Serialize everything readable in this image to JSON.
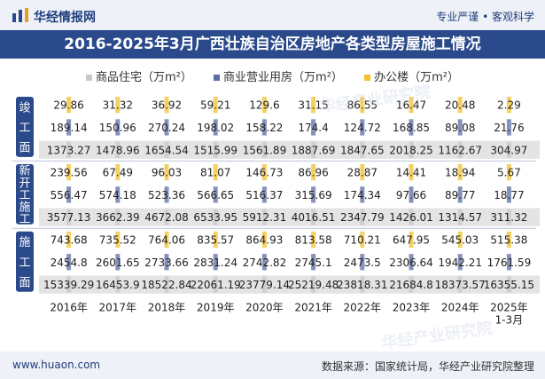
{
  "header": {
    "brand": "华经情报网",
    "slogan": "专业严谨 • 客观科学"
  },
  "chart_data": {
    "type": "table",
    "title": "2016-2025年3月广西壮族自治区房地产各类型房屋施工情况",
    "legend": [
      "商品住宅（万m²）",
      "商业营业用房（万m²）",
      "办公楼（万m²）"
    ],
    "colors": {
      "residential": "#c8c8c8",
      "commercial": "#5b6ea6",
      "office": "#f2c230",
      "rowband": "#e4e4e4",
      "group": "#2b4a8b"
    },
    "categories": [
      "2016年",
      "2017年",
      "2018年",
      "2019年",
      "2020年",
      "2021年",
      "2022年",
      "2023年",
      "2024年",
      "2025年"
    ],
    "last_category_sub": "1-3月",
    "groups": [
      {
        "name": "竣工面积",
        "label_chars": [
          "竣",
          "工",
          "面"
        ],
        "rows": [
          {
            "series": "office",
            "values": [
              29.86,
              31.32,
              36.92,
              59.21,
              129.6,
              31.15,
              86.55,
              16.47,
              20.48,
              2.29
            ]
          },
          {
            "series": "commercial",
            "values": [
              189.14,
              150.96,
              270.24,
              198.02,
              158.22,
              174.4,
              124.72,
              168.85,
              89.08,
              21.76
            ]
          },
          {
            "series": "residential",
            "values": [
              1373.27,
              1478.96,
              1654.54,
              1515.99,
              1561.89,
              1887.69,
              1847.65,
              2018.25,
              1162.67,
              304.97
            ]
          }
        ]
      },
      {
        "name": "新开工施工面积",
        "label_chars": [
          "新",
          "开",
          "工",
          "施",
          "工"
        ],
        "rows": [
          {
            "series": "office",
            "values": [
              239.56,
              67.49,
              96.03,
              81.07,
              146.73,
              86.96,
              28.87,
              14.41,
              18.94,
              5.67
            ]
          },
          {
            "series": "commercial",
            "values": [
              556.47,
              574.18,
              523.36,
              566.65,
              516.37,
              315.69,
              174.34,
              97.66,
              89.77,
              18.77
            ]
          },
          {
            "series": "residential",
            "values": [
              3577.13,
              3662.39,
              4672.08,
              6533.95,
              5912.31,
              4016.51,
              2347.79,
              1426.01,
              1314.57,
              311.32
            ]
          }
        ]
      },
      {
        "name": "施工面积",
        "label_chars": [
          "施",
          "工",
          "面"
        ],
        "rows": [
          {
            "series": "office",
            "values": [
              743.68,
              735.52,
              764.06,
              835.57,
              864.93,
              813.58,
              710.21,
              647.95,
              545.03,
              515.38
            ]
          },
          {
            "series": "commercial",
            "values": [
              2454.8,
              2601.65,
              2733.66,
              2831.24,
              2742.82,
              2745.1,
              2473.5,
              2306.64,
              1942.21,
              1761.59
            ]
          },
          {
            "series": "residential",
            "values": [
              15339.29,
              16453.9,
              18522.84,
              22061.19,
              23779.14,
              25219.48,
              23818.31,
              21684.8,
              18373.57,
              16355.15
            ]
          }
        ]
      }
    ]
  },
  "watermarks": [
    "华经产业研究院",
    "华经产业研究院"
  ],
  "footer": {
    "site": "www.huaon.com",
    "source": "数据来源：国家统计局，华经产业研究院整理"
  }
}
